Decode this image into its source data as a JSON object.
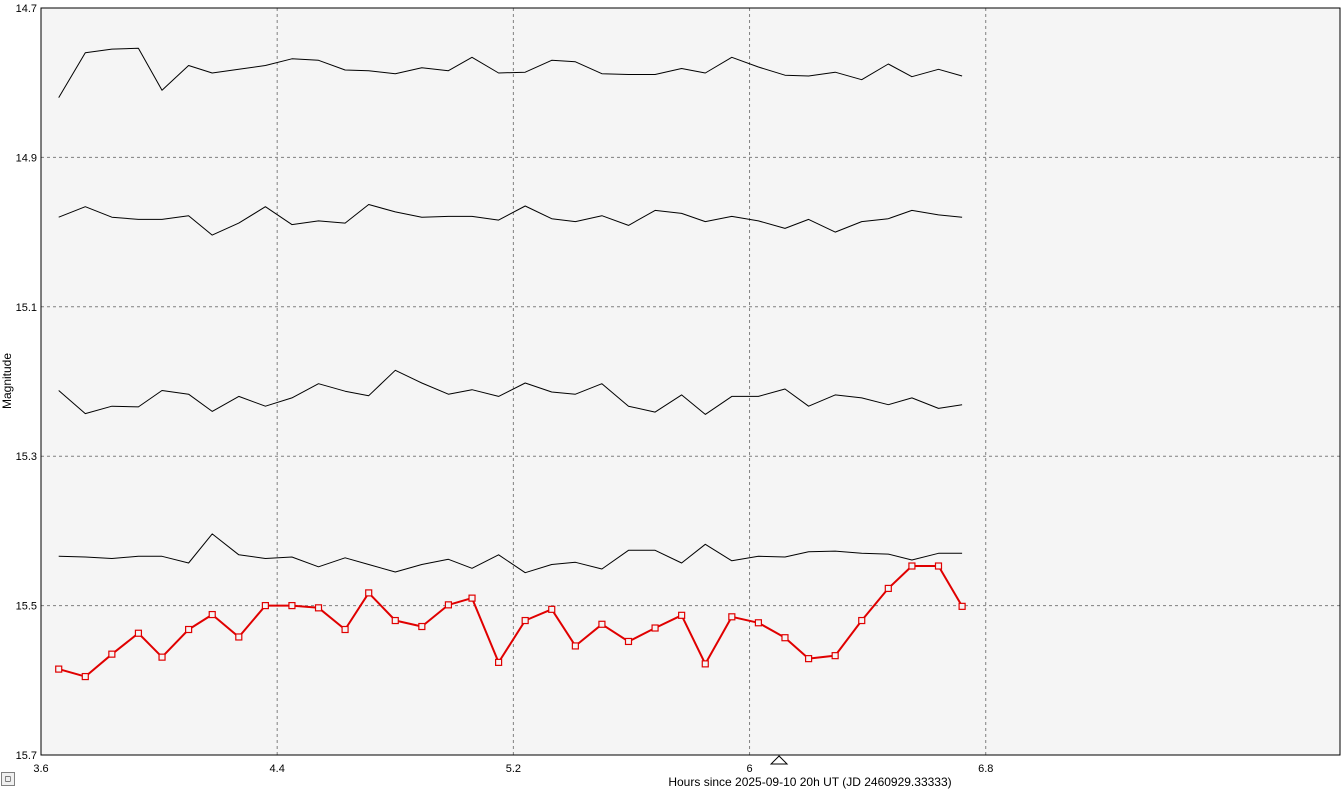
{
  "chart_data": {
    "type": "line",
    "title": "",
    "xlabel": "Hours since 2025-09-10 20h UT (JD 2460929.33333)",
    "ylabel": "Magnitude",
    "xlim": [
      3.6,
      8.0
    ],
    "ylim": [
      14.7,
      15.7
    ],
    "y_inverted": true,
    "xticks": [
      "3.6",
      "4.4",
      "5.2",
      "6",
      "6.8"
    ],
    "yticks": [
      "14.7",
      "14.9",
      "15.1",
      "15.3",
      "15.5",
      "15.7"
    ],
    "grid": true,
    "marker_x": 6.1,
    "x": [
      3.66,
      3.75,
      3.84,
      3.93,
      4.01,
      4.1,
      4.18,
      4.27,
      4.36,
      4.45,
      4.54,
      4.63,
      4.71,
      4.8,
      4.89,
      4.98,
      5.06,
      5.15,
      5.24,
      5.33,
      5.41,
      5.5,
      5.59,
      5.68,
      5.77,
      5.85,
      5.94,
      6.03,
      6.12,
      6.2,
      6.29,
      6.38,
      6.47,
      6.55,
      6.64,
      6.72
    ],
    "series": [
      {
        "color": "#000000",
        "markers": false,
        "values": [
          14.82,
          14.76,
          14.755,
          14.754,
          14.81,
          14.777,
          14.787,
          14.782,
          14.777,
          14.768,
          14.77,
          14.783,
          14.784,
          14.788,
          14.78,
          14.784,
          14.766,
          14.787,
          14.786,
          14.77,
          14.772,
          14.788,
          14.789,
          14.789,
          14.781,
          14.787,
          14.766,
          14.779,
          14.79,
          14.791,
          14.786,
          14.796,
          14.775,
          14.792,
          14.782,
          14.791
        ]
      },
      {
        "color": "#000000",
        "markers": false,
        "values": [
          14.98,
          14.966,
          14.98,
          14.983,
          14.983,
          14.978,
          15.004,
          14.988,
          14.966,
          14.99,
          14.985,
          14.988,
          14.963,
          14.973,
          14.98,
          14.979,
          14.979,
          14.984,
          14.965,
          14.982,
          14.986,
          14.978,
          14.991,
          14.971,
          14.975,
          14.986,
          14.979,
          14.985,
          14.995,
          14.983,
          15.0,
          14.986,
          14.982,
          14.971,
          14.977,
          14.98
        ]
      },
      {
        "color": "#000000",
        "markers": false,
        "values": [
          15.212,
          15.243,
          15.233,
          15.234,
          15.212,
          15.217,
          15.24,
          15.22,
          15.233,
          15.222,
          15.203,
          15.213,
          15.219,
          15.185,
          15.202,
          15.217,
          15.211,
          15.22,
          15.202,
          15.214,
          15.217,
          15.203,
          15.233,
          15.241,
          15.218,
          15.244,
          15.22,
          15.22,
          15.21,
          15.233,
          15.218,
          15.222,
          15.231,
          15.222,
          15.236,
          15.231
        ]
      },
      {
        "color": "#000000",
        "markers": false,
        "values": [
          15.434,
          15.435,
          15.437,
          15.434,
          15.434,
          15.443,
          15.404,
          15.432,
          15.437,
          15.435,
          15.448,
          15.436,
          15.445,
          15.455,
          15.445,
          15.438,
          15.45,
          15.432,
          15.456,
          15.445,
          15.442,
          15.451,
          15.426,
          15.426,
          15.443,
          15.418,
          15.44,
          15.434,
          15.435,
          15.428,
          15.427,
          15.43,
          15.431,
          15.439,
          15.43,
          15.43
        ]
      },
      {
        "color": "#e00000",
        "markers": true,
        "values": [
          15.585,
          15.595,
          15.565,
          15.537,
          15.569,
          15.532,
          15.512,
          15.542,
          15.5,
          15.5,
          15.503,
          15.532,
          15.483,
          15.52,
          15.528,
          15.499,
          15.49,
          15.576,
          15.52,
          15.505,
          15.554,
          15.525,
          15.548,
          15.53,
          15.513,
          15.578,
          15.515,
          15.523,
          15.543,
          15.571,
          15.567,
          15.52,
          15.477,
          15.447,
          15.447,
          15.501
        ]
      }
    ]
  },
  "corner_button": {
    "label": "◻"
  }
}
